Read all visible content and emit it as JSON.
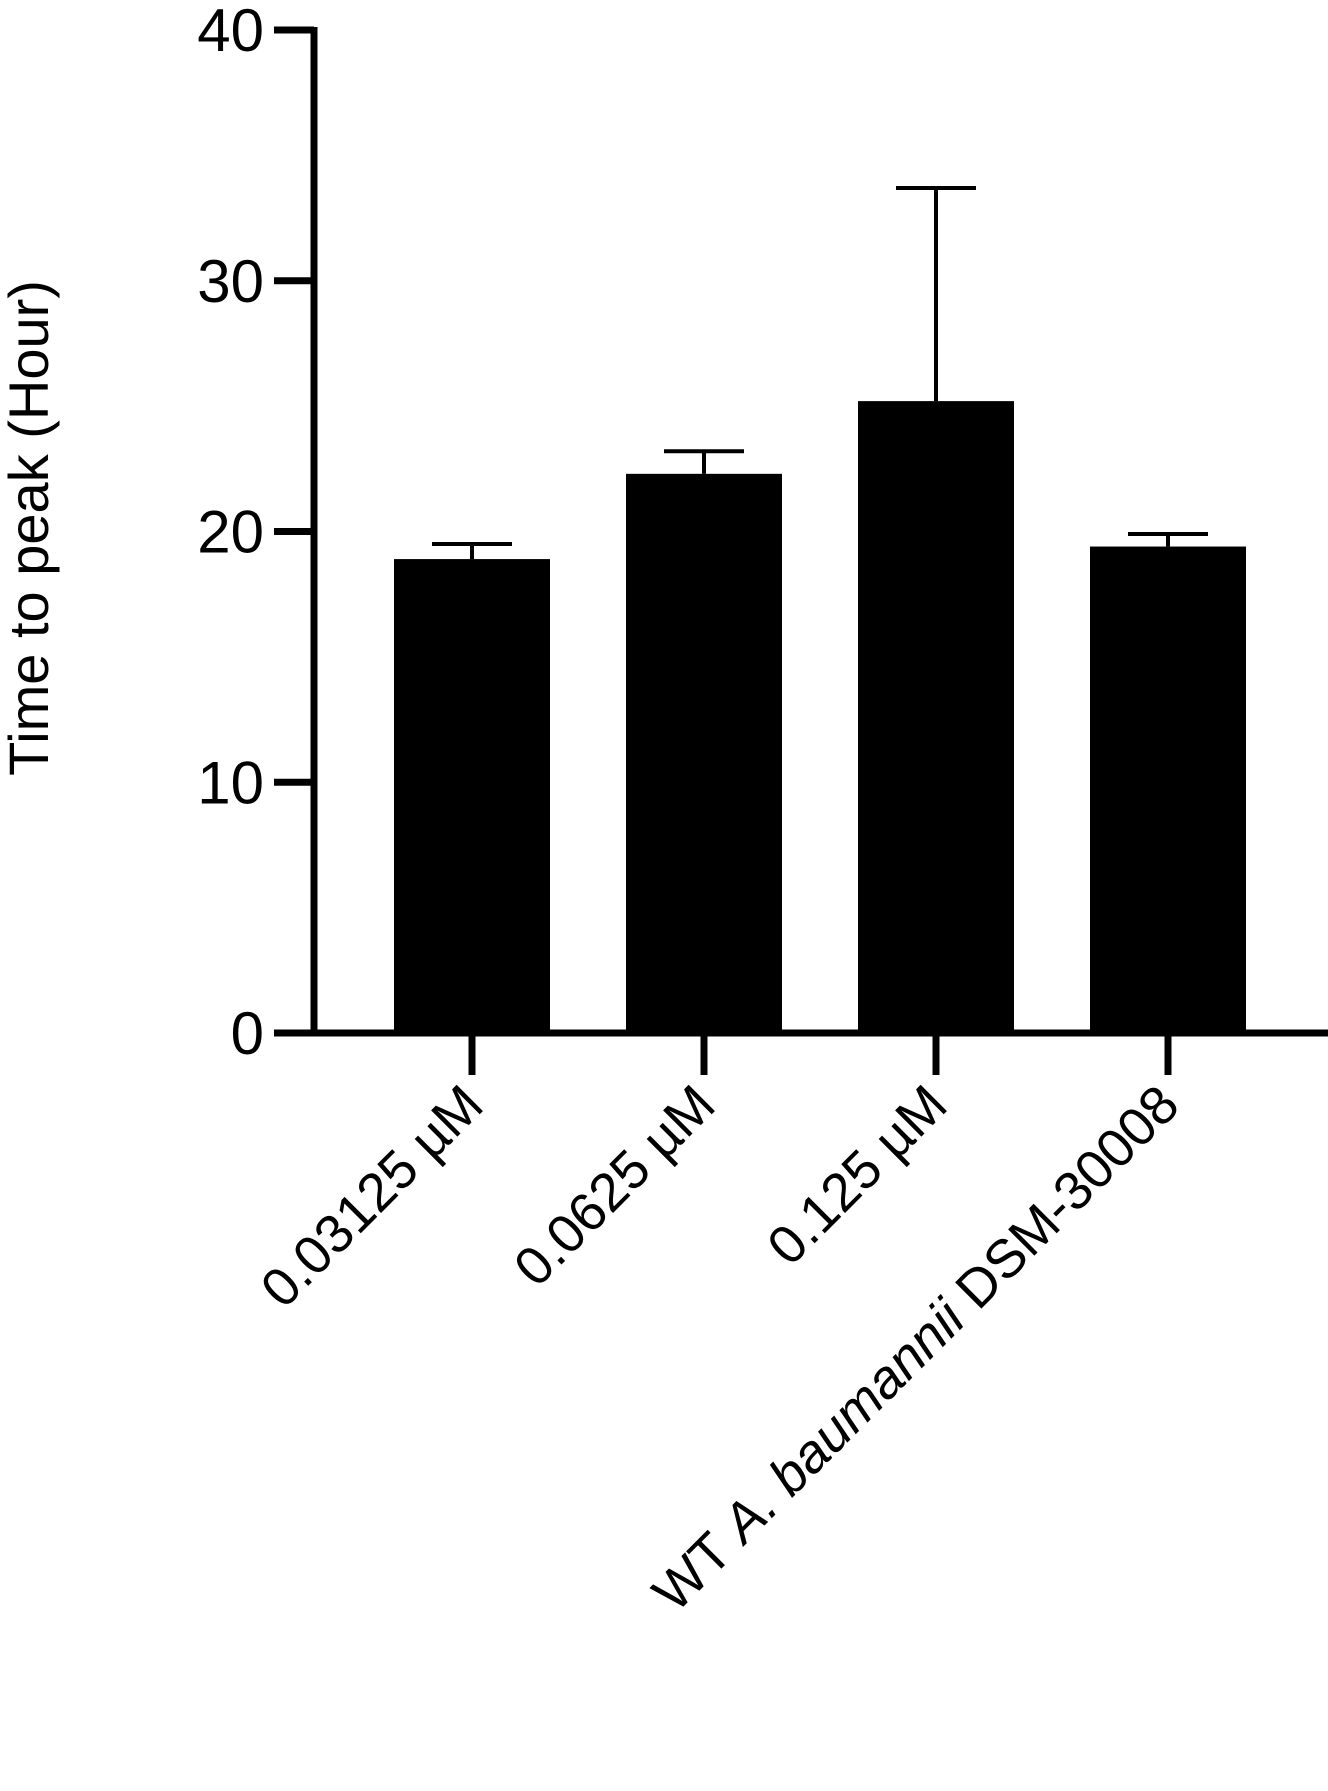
{
  "chart_data": {
    "type": "bar",
    "title": "",
    "xlabel": "",
    "ylabel": "Time to peak (Hour)",
    "ylim": [
      0,
      40
    ],
    "yticks": [
      "0",
      "10",
      "20",
      "30",
      "40"
    ],
    "categories": [
      [
        "0.03125 µM"
      ],
      [
        "0.0625 µM"
      ],
      [
        "0.125 µM"
      ],
      [
        "WT ",
        "A. baumannii",
        " DSM-30008"
      ]
    ],
    "values": [
      18.9,
      22.3,
      25.2,
      19.4
    ],
    "error_upper": [
      19.5,
      23.2,
      33.7,
      19.9
    ],
    "bar_color": "#000000",
    "grid": false,
    "legend": "none"
  }
}
